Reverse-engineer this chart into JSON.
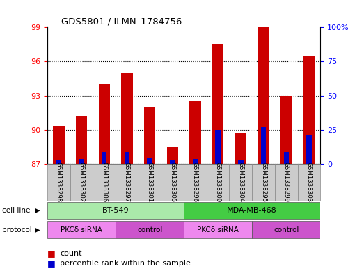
{
  "title": "GDS5801 / ILMN_1784756",
  "samples": [
    "GSM1338298",
    "GSM1338302",
    "GSM1338306",
    "GSM1338297",
    "GSM1338301",
    "GSM1338305",
    "GSM1338296",
    "GSM1338300",
    "GSM1338304",
    "GSM1338295",
    "GSM1338299",
    "GSM1338303"
  ],
  "red_values": [
    90.3,
    91.2,
    94.0,
    95.0,
    92.0,
    88.5,
    92.5,
    97.5,
    89.7,
    99.0,
    93.0,
    96.5
  ],
  "blue_values": [
    87.3,
    87.4,
    88.0,
    88.0,
    87.5,
    87.3,
    87.4,
    90.0,
    87.3,
    90.2,
    88.0,
    89.5
  ],
  "ymin": 87,
  "ymax": 99,
  "y2min": 0,
  "y2max": 100,
  "yticks": [
    87,
    90,
    93,
    96,
    99
  ],
  "y2ticks": [
    0,
    25,
    50,
    75,
    100
  ],
  "bar_color": "#cc0000",
  "blue_color": "#0000cc",
  "cell_line_groups": [
    {
      "label": "BT-549",
      "start": 0,
      "end": 5,
      "color": "#aaeaaa"
    },
    {
      "label": "MDA-MB-468",
      "start": 6,
      "end": 11,
      "color": "#44cc44"
    }
  ],
  "protocol_groups": [
    {
      "label": "PKCδ siRNA",
      "start": 0,
      "end": 2,
      "color": "#ee88ee"
    },
    {
      "label": "control",
      "start": 3,
      "end": 5,
      "color": "#cc55cc"
    },
    {
      "label": "PKCδ siRNA",
      "start": 6,
      "end": 8,
      "color": "#ee88ee"
    },
    {
      "label": "control",
      "start": 9,
      "end": 11,
      "color": "#cc55cc"
    }
  ],
  "legend_count": "count",
  "legend_percentile": "percentile rank within the sample",
  "bar_width": 0.5,
  "background_color": "#ffffff",
  "plot_bg_color": "#ffffff",
  "label_cellline": "cell line",
  "label_protocol": "protocol"
}
